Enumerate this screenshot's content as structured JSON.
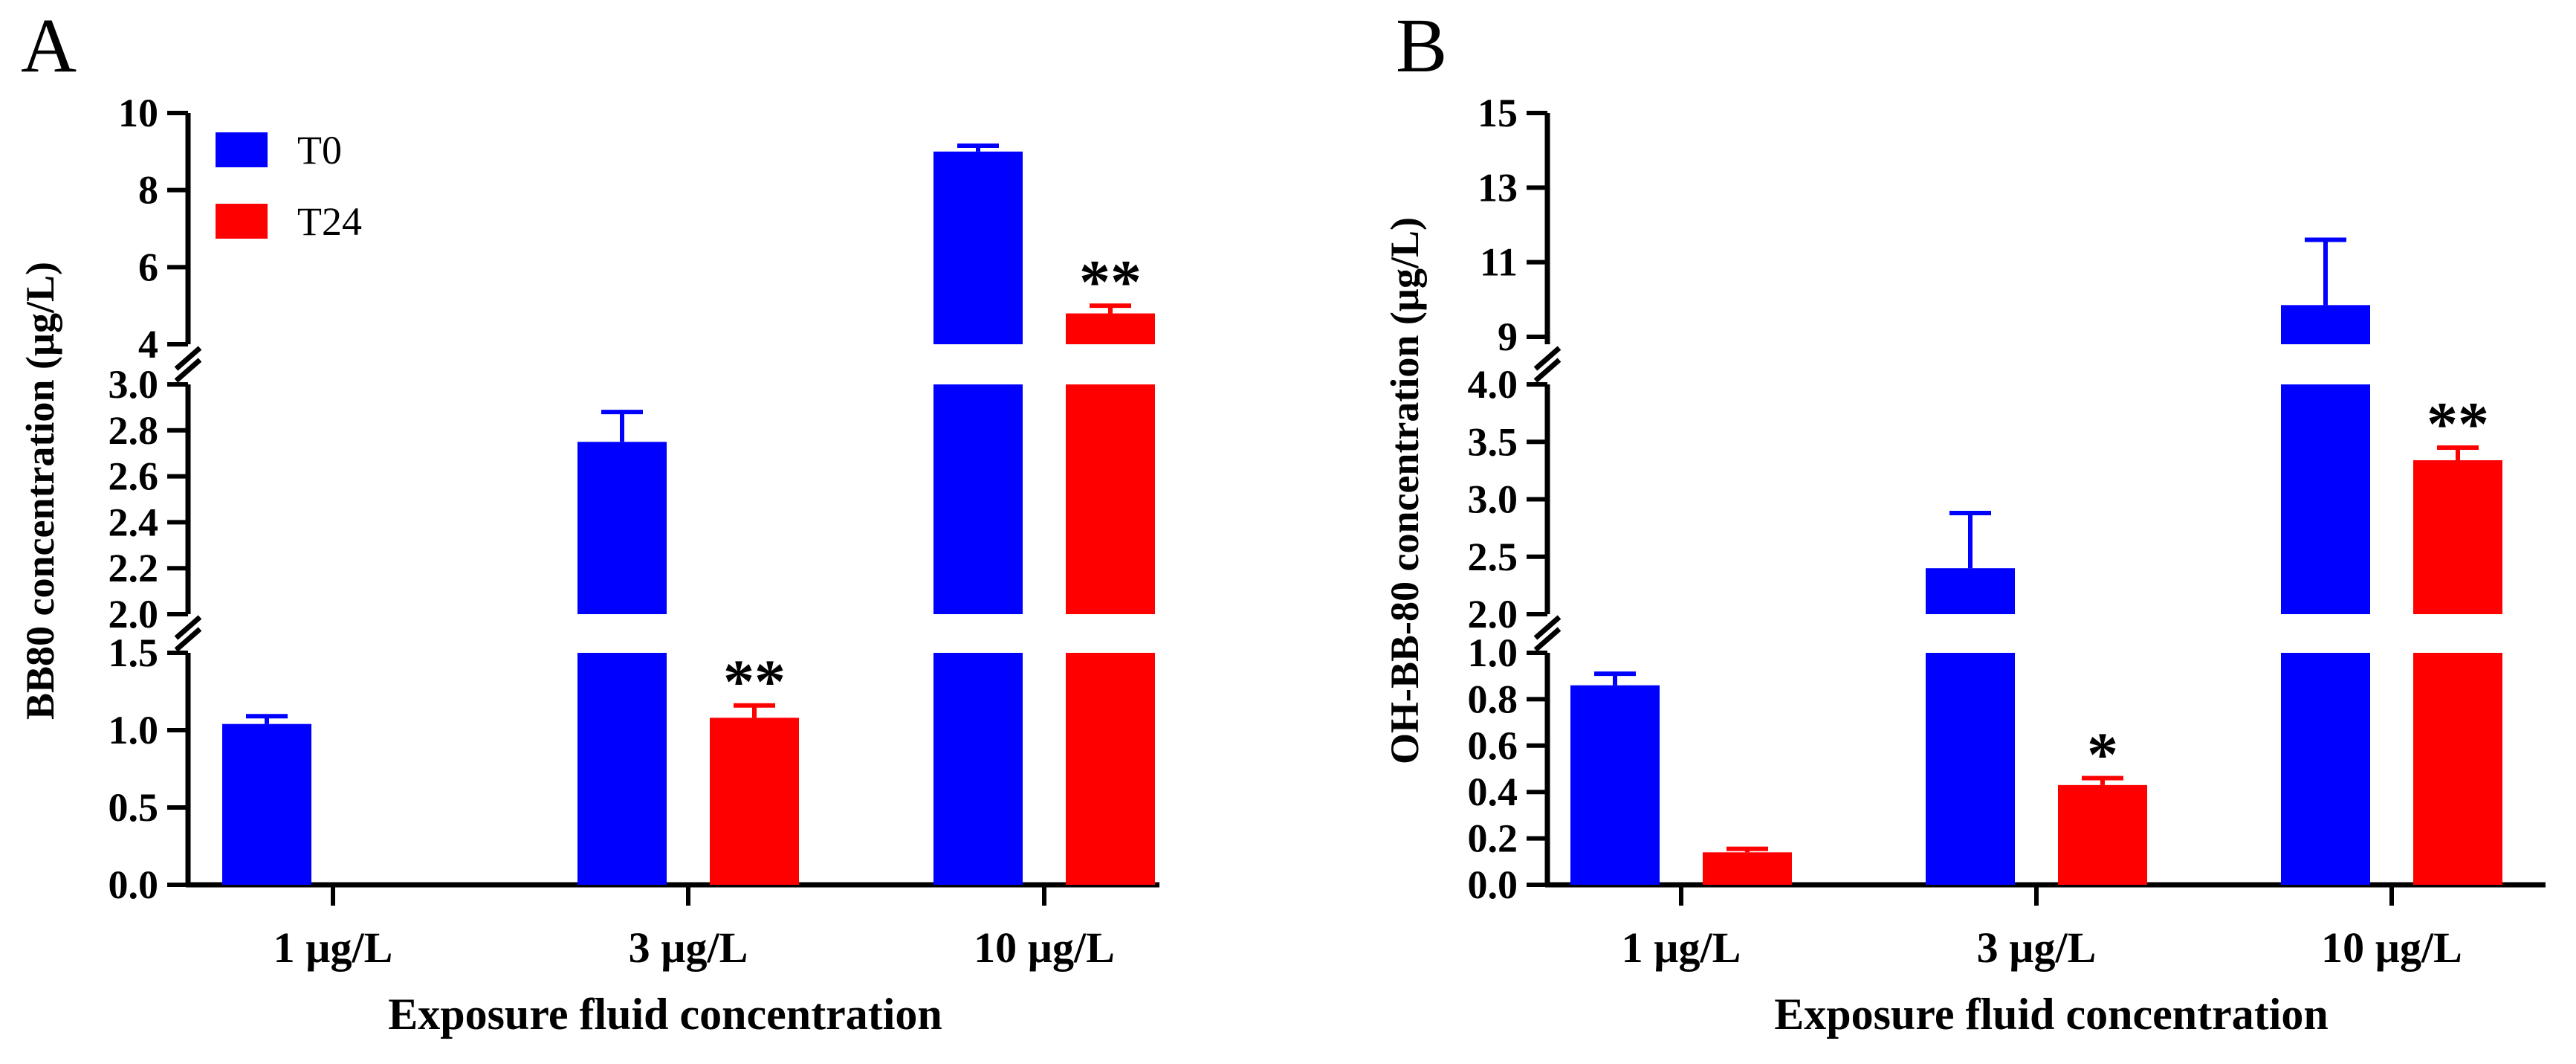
{
  "colors": {
    "T0": "#0000FF",
    "T24": "#FF0000",
    "axis": "#000000"
  },
  "chart_data": [
    {
      "panel": "A",
      "type": "bar",
      "categories": [
        "1 µg/L",
        "3 µg/L",
        "10 µg/L"
      ],
      "xlabel": "Exposure fluid concentration",
      "ylabel": "BB80 concentration (µg/L)",
      "legend": {
        "position": "top-left",
        "entries": [
          "T0",
          "T24"
        ]
      },
      "series": [
        {
          "name": "T0",
          "values": [
            1.04,
            2.75,
            9.0
          ],
          "errors": [
            0.05,
            0.13,
            0.15
          ]
        },
        {
          "name": "T24",
          "values": [
            0.0,
            1.08,
            4.8
          ],
          "errors": [
            0.0,
            0.08,
            0.2
          ]
        }
      ],
      "significance": [
        {
          "category": "3 µg/L",
          "series": "T24",
          "label": "**"
        },
        {
          "category": "10 µg/L",
          "series": "T24",
          "label": "**"
        }
      ],
      "y_segments": [
        {
          "range": [
            0,
            1.5
          ],
          "ticks": [
            "0.0",
            "0.5",
            "1.0",
            "1.5"
          ]
        },
        {
          "range": [
            2.0,
            3.0
          ],
          "ticks": [
            "2.0",
            "2.2",
            "2.4",
            "2.6",
            "2.8",
            "3.0"
          ]
        },
        {
          "range": [
            4,
            10
          ],
          "ticks": [
            "4",
            "6",
            "8",
            "10"
          ]
        }
      ]
    },
    {
      "panel": "B",
      "type": "bar",
      "categories": [
        "1 µg/L",
        "3 µg/L",
        "10 µg/L"
      ],
      "xlabel": "Exposure fluid concentration",
      "ylabel": "OH-BB-80 concentration (µg/L)",
      "legend": null,
      "series": [
        {
          "name": "T0",
          "values": [
            0.86,
            2.4,
            9.85
          ],
          "errors": [
            0.05,
            0.48,
            1.75
          ]
        },
        {
          "name": "T24",
          "values": [
            0.14,
            0.43,
            3.34
          ],
          "errors": [
            0.015,
            0.03,
            0.11
          ]
        }
      ],
      "significance": [
        {
          "category": "3 µg/L",
          "series": "T24",
          "label": "*"
        },
        {
          "category": "10 µg/L",
          "series": "T24",
          "label": "**"
        }
      ],
      "y_segments": [
        {
          "range": [
            0,
            1.0
          ],
          "ticks": [
            "0.0",
            "0.2",
            "0.4",
            "0.6",
            "0.8",
            "1.0"
          ]
        },
        {
          "range": [
            2.0,
            4.0
          ],
          "ticks": [
            "2.0",
            "2.5",
            "3.0",
            "3.5",
            "4.0"
          ]
        },
        {
          "range": [
            8.8,
            15
          ],
          "ticks": [
            "9",
            "11",
            "13",
            "15"
          ]
        }
      ]
    }
  ]
}
